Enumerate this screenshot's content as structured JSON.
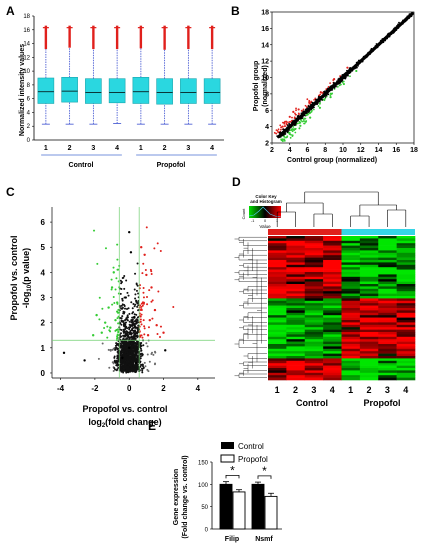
{
  "panels": {
    "A": "A",
    "B": "B",
    "C": "C",
    "D": "D",
    "E": "E"
  },
  "colors": {
    "box_fill": "#2ad7e0",
    "whisker": "#3a4fd0",
    "outlier": "#e0201c",
    "up": "#e0201c",
    "down": "#35cc35",
    "neutral": "#000000",
    "guide": "#6fcf6f",
    "control_bar": "#000000",
    "propofol_bar": "#ffffff",
    "control_strip": "#e0201c",
    "propofol_strip": "#35d5e6"
  },
  "chart_data": [
    {
      "panel": "A",
      "type": "box",
      "ylabel": "Normalized intensity values",
      "ylim": [
        0,
        18
      ],
      "yticks": [
        "0",
        "2",
        "4",
        "6",
        "8",
        "10",
        "12",
        "14",
        "16",
        "18"
      ],
      "categories": [
        "1",
        "2",
        "3",
        "4",
        "1",
        "2",
        "3",
        "4"
      ],
      "groups": [
        {
          "name": "Control",
          "samples": [
            "1",
            "2",
            "3",
            "4"
          ]
        },
        {
          "name": "Propofol",
          "samples": [
            "1",
            "2",
            "3",
            "4"
          ]
        }
      ],
      "boxes": [
        {
          "whisker_low": 2.3,
          "q1": 5.3,
          "median": 7.0,
          "q3": 9.0,
          "whisker_high": 13.2,
          "outlier_max": 16.6
        },
        {
          "whisker_low": 2.3,
          "q1": 5.5,
          "median": 7.1,
          "q3": 9.1,
          "whisker_high": 13.4,
          "outlier_max": 16.6
        },
        {
          "whisker_low": 2.3,
          "q1": 5.3,
          "median": 6.9,
          "q3": 8.9,
          "whisker_high": 13.2,
          "outlier_max": 16.6
        },
        {
          "whisker_low": 2.4,
          "q1": 5.4,
          "median": 6.9,
          "q3": 8.9,
          "whisker_high": 13.2,
          "outlier_max": 16.6
        },
        {
          "whisker_low": 2.3,
          "q1": 5.3,
          "median": 7.0,
          "q3": 9.1,
          "whisker_high": 13.3,
          "outlier_max": 16.6
        },
        {
          "whisker_low": 2.3,
          "q1": 5.2,
          "median": 6.9,
          "q3": 8.9,
          "whisker_high": 13.1,
          "outlier_max": 16.6
        },
        {
          "whisker_low": 2.3,
          "q1": 5.3,
          "median": 6.9,
          "q3": 8.9,
          "whisker_high": 13.2,
          "outlier_max": 16.6
        },
        {
          "whisker_low": 2.3,
          "q1": 5.3,
          "median": 6.9,
          "q3": 8.9,
          "whisker_high": 13.2,
          "outlier_max": 16.6
        }
      ]
    },
    {
      "panel": "B",
      "type": "scatter",
      "xlabel": "Control group (normalized)",
      "ylabel_line1": "Propofol group",
      "ylabel_line2": "(normalized)",
      "xlim": [
        2,
        18
      ],
      "ylim": [
        2,
        18
      ],
      "xticks": [
        "2",
        "4",
        "6",
        "8",
        "10",
        "12",
        "14",
        "16",
        "18"
      ],
      "yticks": [
        "2",
        "4",
        "6",
        "8",
        "10",
        "12",
        "14",
        "16",
        "18"
      ],
      "series": [
        {
          "points": [
            [
              3.0,
              3.1
            ],
            [
              4.0,
              4.0
            ],
            [
              6.0,
              6.1
            ],
            [
              8.0,
              8.0
            ],
            [
              10.0,
              10.1
            ],
            [
              12.0,
              12.0
            ],
            [
              14.0,
              14.1
            ],
            [
              16.0,
              16.0
            ],
            [
              17.5,
              17.6
            ]
          ]
        },
        {
          "points": [
            [
              3.2,
              4.0
            ],
            [
              4.0,
              5.2
            ],
            [
              5.0,
              6.1
            ],
            [
              6.2,
              7.0
            ],
            [
              7.5,
              8.2
            ],
            [
              9.0,
              9.8
            ],
            [
              10.5,
              11.2
            ],
            [
              3.6,
              4.6
            ],
            [
              4.4,
              5.8
            ]
          ]
        },
        {
          "points": [
            [
              4.0,
              3.1
            ],
            [
              5.2,
              4.1
            ],
            [
              6.3,
              5.1
            ],
            [
              7.4,
              6.3
            ],
            [
              8.6,
              7.6
            ],
            [
              10.1,
              9.2
            ],
            [
              11.5,
              10.8
            ],
            [
              4.6,
              3.7
            ],
            [
              5.8,
              4.6
            ]
          ]
        }
      ]
    },
    {
      "panel": "C",
      "type": "scatter",
      "xlabel": "Propofol vs. control",
      "xlabel2_prefix": "log",
      "xlabel2_sub": "2",
      "xlabel2_suffix": "(fold change)",
      "ylabel_line1": "Propofol vs. control",
      "ylabel_line2_prefix": "-log",
      "ylabel_line2_sub": "10",
      "ylabel_line2_suffix": "(p value)",
      "xlim": [
        -4.5,
        5
      ],
      "ylim": [
        -0.2,
        6.6
      ],
      "xticks": [
        "-4",
        "-2",
        "0",
        "2",
        "4"
      ],
      "yticks": [
        "0",
        "1",
        "2",
        "3",
        "4",
        "5",
        "6"
      ],
      "thresholds": {
        "fold_change": [
          -0.58,
          0.58
        ],
        "p_value": 1.3
      },
      "series": [
        {
          "points": [
            [
              -1.6,
              1.6
            ],
            [
              -1.2,
              2.6
            ],
            [
              -1.0,
              3.4
            ],
            [
              -0.8,
              2.1
            ],
            [
              -1.4,
              2.0
            ],
            [
              -2.1,
              1.5
            ],
            [
              -0.9,
              4.0
            ],
            [
              -0.7,
              2.8
            ],
            [
              -1.1,
              1.8
            ],
            [
              -1.9,
              2.3
            ]
          ]
        },
        {
          "points": [
            [
              1.2,
              2.1
            ],
            [
              0.9,
              4.7
            ],
            [
              1.3,
              3.4
            ],
            [
              0.8,
              2.8
            ],
            [
              1.6,
              1.9
            ],
            [
              1.0,
              3.9
            ],
            [
              1.5,
              2.5
            ],
            [
              0.7,
              5.0
            ],
            [
              2.0,
              1.6
            ],
            [
              1.1,
              1.5
            ]
          ]
        },
        {
          "points": [
            [
              0.0,
              5.6
            ],
            [
              0.1,
              4.8
            ],
            [
              -0.2,
              3.0
            ],
            [
              0.3,
              2.2
            ],
            [
              0.0,
              1.0
            ],
            [
              -0.4,
              0.6
            ],
            [
              0.4,
              0.4
            ],
            [
              -3.8,
              0.8
            ],
            [
              2.1,
              0.9
            ],
            [
              -2.6,
              0.5
            ]
          ]
        }
      ]
    },
    {
      "panel": "D",
      "type": "heatmap",
      "color_key_title": "Color Key",
      "color_key_subtitle": "and Histogram",
      "color_key_axis": "Count",
      "color_key_value_label": "Value",
      "color_key_ticks": [
        "-1",
        "0",
        "1"
      ],
      "columns": [
        "1",
        "2",
        "3",
        "4",
        "1",
        "2",
        "3",
        "4"
      ],
      "groups": [
        {
          "name": "Control",
          "columns": [
            "1",
            "2",
            "3",
            "4"
          ]
        },
        {
          "name": "Propofol",
          "columns": [
            "1",
            "2",
            "3",
            "4"
          ]
        }
      ]
    },
    {
      "panel": "E",
      "type": "bar",
      "ylabel_line1": "Gene expression",
      "ylabel_line2": "(Fold change vs. control)",
      "ylim": [
        0,
        150
      ],
      "yticks": [
        "0",
        "50",
        "100",
        "150"
      ],
      "categories": [
        "Filip",
        "Nsmf"
      ],
      "series": [
        {
          "name": "Control",
          "values": [
            100,
            100
          ],
          "errors": [
            6,
            5
          ]
        },
        {
          "name": "Propofol",
          "values": [
            83,
            73
          ],
          "errors": [
            5,
            7
          ]
        }
      ],
      "significance": [
        "*",
        "*"
      ]
    }
  ]
}
